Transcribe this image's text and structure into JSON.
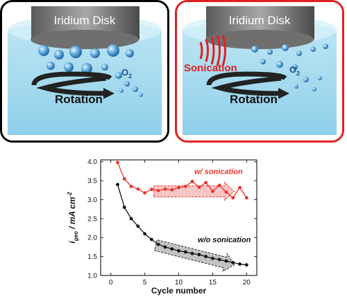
{
  "panels": [
    {
      "disk_label": "Iridium Disk",
      "rotation_label": "Rotation",
      "o2_main": "O",
      "o2_sub": "2",
      "border_color": "#111111"
    },
    {
      "disk_label": "Iridium Disk",
      "rotation_label": "Rotation",
      "sonication_label": "Sonication",
      "o2_main": "O",
      "o2_sub": "2",
      "border_color": "#e02020"
    }
  ],
  "chart_data": {
    "type": "line",
    "xlabel": "Cycle number",
    "ylabel_main": "i",
    "ylabel_sub": "geo",
    "ylabel_rest": " / mA cm",
    "ylabel_sup": "-2",
    "xlim": [
      -1.5,
      21.5
    ],
    "ylim": [
      1.0,
      4.05
    ],
    "xticks": [
      0,
      5,
      10,
      15,
      20
    ],
    "yticks": [
      1.0,
      1.5,
      2.0,
      2.5,
      3.0,
      3.5,
      4.0
    ],
    "series": [
      {
        "name": "w/ sonication",
        "color": "#e8322a",
        "x": [
          1,
          2,
          3,
          4,
          5,
          6,
          7,
          8,
          9,
          10,
          11,
          12,
          13,
          14,
          15,
          16,
          17,
          18,
          19,
          20
        ],
        "y": [
          3.98,
          3.55,
          3.35,
          3.28,
          3.18,
          3.27,
          3.24,
          3.28,
          3.26,
          3.32,
          3.35,
          3.48,
          3.33,
          3.45,
          3.22,
          3.38,
          3.2,
          3.05,
          3.32,
          3.05
        ]
      },
      {
        "name": "w/o sonication",
        "color": "#111111",
        "x": [
          1,
          2,
          3,
          4,
          5,
          6,
          7,
          8,
          9,
          10,
          11,
          12,
          13,
          14,
          15,
          16,
          17,
          18,
          19,
          20
        ],
        "y": [
          3.4,
          2.8,
          2.5,
          2.3,
          2.1,
          1.95,
          1.82,
          1.75,
          1.7,
          1.65,
          1.62,
          1.58,
          1.55,
          1.5,
          1.45,
          1.42,
          1.38,
          1.34,
          1.3,
          1.28
        ]
      }
    ],
    "annotations": [
      {
        "text": "w/ sonication",
        "series": 0
      },
      {
        "text": "w/o sonication",
        "series": 1
      }
    ]
  }
}
